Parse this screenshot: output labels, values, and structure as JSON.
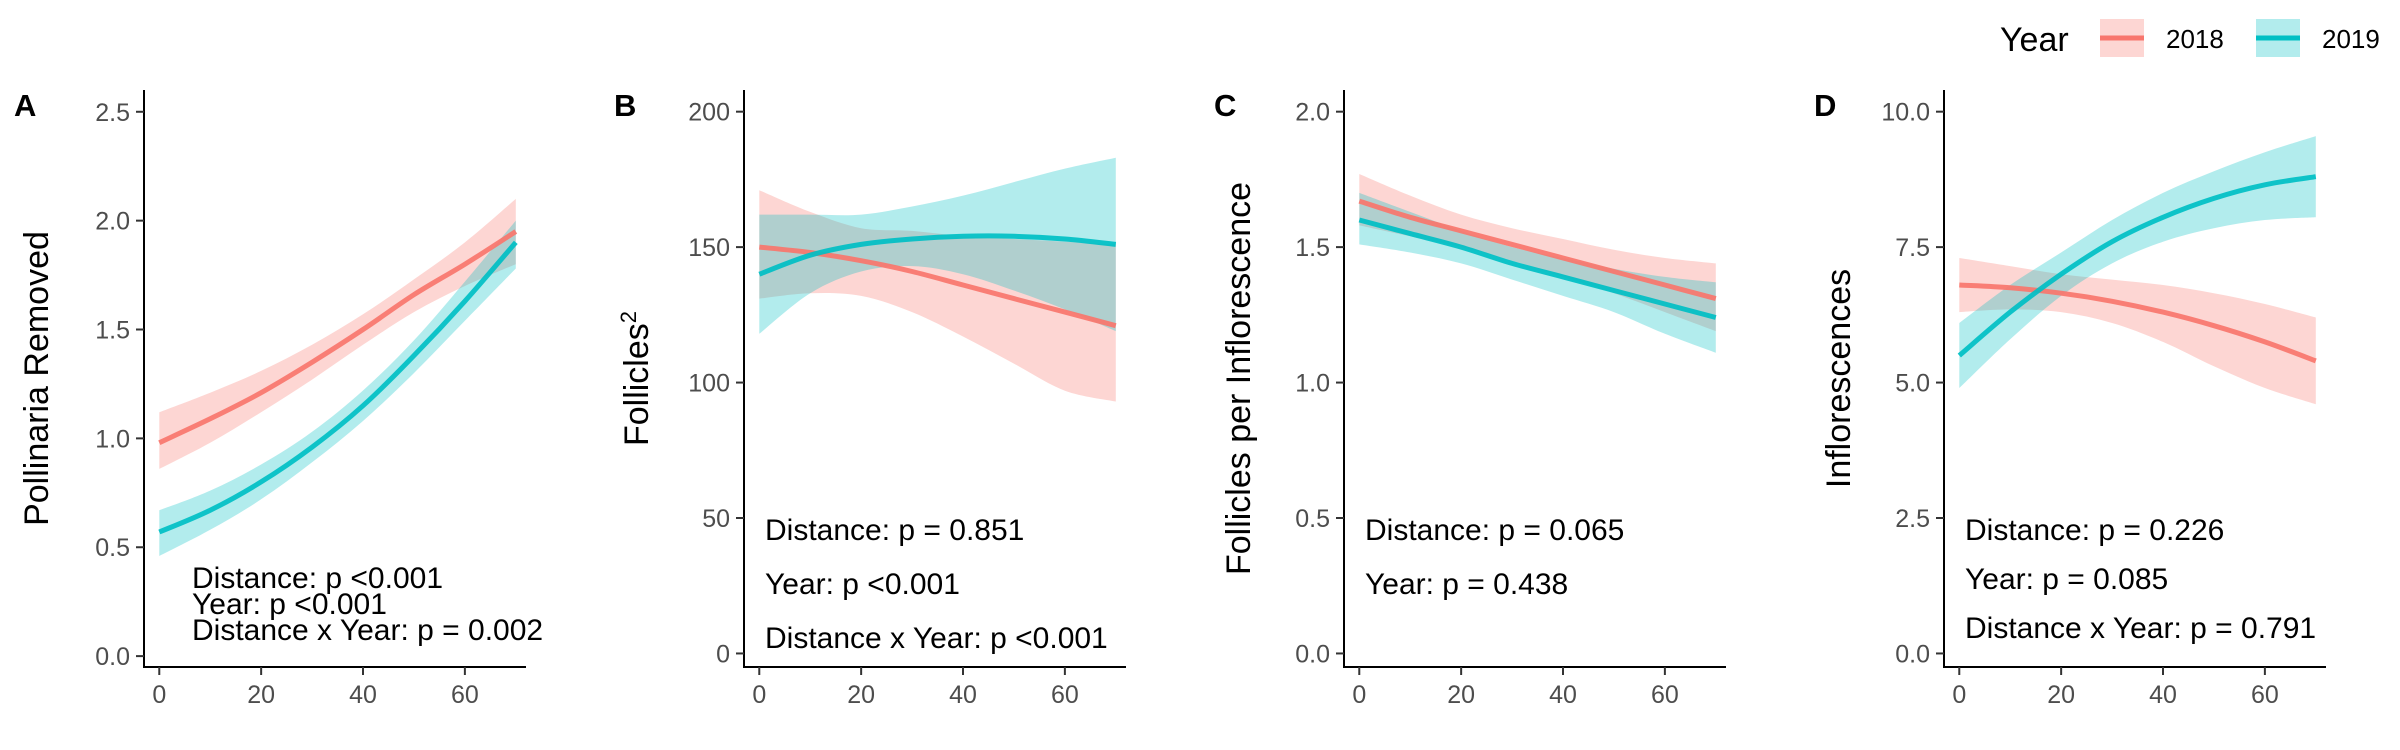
{
  "legend": {
    "title": "Year",
    "position": "top-right",
    "items": [
      {
        "label": "2018",
        "color": "#F8766D"
      },
      {
        "label": "2019",
        "color": "#00BFC4"
      }
    ]
  },
  "chart_data": [
    {
      "type": "line",
      "panel_label": "A",
      "ylabel": "Pollinaria Removed",
      "xlim": [
        -3,
        72
      ],
      "ylim": [
        -0.05,
        2.6
      ],
      "x_ticks": [
        0,
        20,
        40,
        60
      ],
      "y_ticks": [
        0.0,
        0.5,
        1.0,
        1.5,
        2.0,
        2.5
      ],
      "x_tick_labels": [
        "0",
        "20",
        "40",
        "60"
      ],
      "y_tick_labels": [
        "0.0",
        "0.5",
        "1.0",
        "1.5",
        "2.0",
        "2.5"
      ],
      "x": [
        0,
        10,
        20,
        30,
        40,
        50,
        60,
        70
      ],
      "series": [
        {
          "name": "2018",
          "color": "#F8766D",
          "y": [
            0.98,
            1.09,
            1.21,
            1.35,
            1.5,
            1.66,
            1.8,
            1.95
          ],
          "lower": [
            0.86,
            0.98,
            1.12,
            1.27,
            1.43,
            1.58,
            1.7,
            1.8
          ],
          "upper": [
            1.12,
            1.21,
            1.31,
            1.43,
            1.57,
            1.73,
            1.9,
            2.1
          ]
        },
        {
          "name": "2019",
          "color": "#00BFC4",
          "y": [
            0.57,
            0.67,
            0.8,
            0.96,
            1.15,
            1.38,
            1.63,
            1.9
          ],
          "lower": [
            0.46,
            0.58,
            0.72,
            0.89,
            1.08,
            1.3,
            1.54,
            1.78
          ],
          "upper": [
            0.67,
            0.76,
            0.88,
            1.03,
            1.22,
            1.45,
            1.72,
            2.0
          ]
        }
      ],
      "annotations": [
        "Distance: p <0.001",
        "Year: p <0.001",
        "Distance x Year: p = 0.002"
      ]
    },
    {
      "type": "line",
      "panel_label": "B",
      "ylabel": "Follicles",
      "ylabel_superscript": "2",
      "xlim": [
        -3,
        72
      ],
      "ylim": [
        -5,
        208
      ],
      "x_ticks": [
        0,
        20,
        40,
        60
      ],
      "y_ticks": [
        0,
        50,
        100,
        150,
        200
      ],
      "x_tick_labels": [
        "0",
        "20",
        "40",
        "60"
      ],
      "y_tick_labels": [
        "0",
        "50",
        "100",
        "150",
        "200"
      ],
      "x": [
        0,
        10,
        20,
        30,
        40,
        50,
        60,
        70
      ],
      "series": [
        {
          "name": "2018",
          "color": "#F8766D",
          "y": [
            150,
            148,
            145,
            141,
            136,
            131,
            126,
            121
          ],
          "lower": [
            131,
            133,
            132,
            126,
            117,
            107,
            97,
            93
          ],
          "upper": [
            171,
            163,
            157,
            156,
            154,
            153,
            152,
            151
          ]
        },
        {
          "name": "2019",
          "color": "#00BFC4",
          "y": [
            140,
            147,
            151,
            153,
            154,
            154,
            153,
            151
          ],
          "lower": [
            118,
            133,
            141,
            143,
            140,
            134,
            127,
            119
          ],
          "upper": [
            162,
            162,
            162,
            165,
            169,
            174,
            179,
            183
          ]
        }
      ],
      "annotations": [
        "Distance: p = 0.851",
        "Year: p <0.001",
        "Distance x Year: p <0.001"
      ]
    },
    {
      "type": "line",
      "panel_label": "C",
      "ylabel": "Follicles per Inflorescence",
      "xlim": [
        -3,
        72
      ],
      "ylim": [
        -0.05,
        2.08
      ],
      "x_ticks": [
        0,
        20,
        40,
        60
      ],
      "y_ticks": [
        0.0,
        0.5,
        1.0,
        1.5,
        2.0
      ],
      "x_tick_labels": [
        "0",
        "20",
        "40",
        "60"
      ],
      "y_tick_labels": [
        "0.0",
        "0.5",
        "1.0",
        "1.5",
        "2.0"
      ],
      "x": [
        0,
        10,
        20,
        30,
        40,
        50,
        60,
        70
      ],
      "series": [
        {
          "name": "2018",
          "color": "#F8766D",
          "y": [
            1.67,
            1.61,
            1.56,
            1.51,
            1.46,
            1.41,
            1.36,
            1.31
          ],
          "lower": [
            1.58,
            1.54,
            1.5,
            1.45,
            1.39,
            1.33,
            1.26,
            1.19
          ],
          "upper": [
            1.77,
            1.69,
            1.62,
            1.57,
            1.53,
            1.49,
            1.46,
            1.44
          ]
        },
        {
          "name": "2019",
          "color": "#00BFC4",
          "y": [
            1.6,
            1.55,
            1.5,
            1.44,
            1.39,
            1.34,
            1.29,
            1.24
          ],
          "lower": [
            1.51,
            1.48,
            1.44,
            1.38,
            1.32,
            1.26,
            1.18,
            1.11
          ],
          "upper": [
            1.7,
            1.63,
            1.56,
            1.5,
            1.46,
            1.42,
            1.39,
            1.37
          ]
        }
      ],
      "annotations": [
        "Distance: p = 0.065",
        "Year: p = 0.438"
      ]
    },
    {
      "type": "line",
      "panel_label": "D",
      "ylabel": "Inflorescences",
      "xlim": [
        -3,
        72
      ],
      "ylim": [
        -0.25,
        10.4
      ],
      "x_ticks": [
        0,
        20,
        40,
        60
      ],
      "y_ticks": [
        0.0,
        2.5,
        5.0,
        7.5,
        10.0
      ],
      "x_tick_labels": [
        "0",
        "20",
        "40",
        "60"
      ],
      "y_tick_labels": [
        "0.0",
        "2.5",
        "5.0",
        "7.5",
        "10.0"
      ],
      "x": [
        0,
        10,
        20,
        30,
        40,
        50,
        60,
        70
      ],
      "series": [
        {
          "name": "2018",
          "color": "#F8766D",
          "y": [
            6.8,
            6.75,
            6.65,
            6.5,
            6.3,
            6.05,
            5.75,
            5.4
          ],
          "lower": [
            6.3,
            6.35,
            6.3,
            6.1,
            5.75,
            5.3,
            4.9,
            4.6
          ],
          "upper": [
            7.3,
            7.15,
            7.0,
            6.9,
            6.8,
            6.65,
            6.45,
            6.2
          ]
        },
        {
          "name": "2019",
          "color": "#00BFC4",
          "y": [
            5.5,
            6.3,
            7.0,
            7.6,
            8.05,
            8.4,
            8.65,
            8.8
          ],
          "lower": [
            4.9,
            5.8,
            6.6,
            7.2,
            7.6,
            7.85,
            8.0,
            8.05
          ],
          "upper": [
            6.1,
            6.8,
            7.4,
            8.0,
            8.5,
            8.9,
            9.25,
            9.55
          ]
        }
      ],
      "annotations": [
        "Distance: p = 0.226",
        "Year: p = 0.085",
        "Distance x Year: p = 0.791"
      ]
    }
  ]
}
